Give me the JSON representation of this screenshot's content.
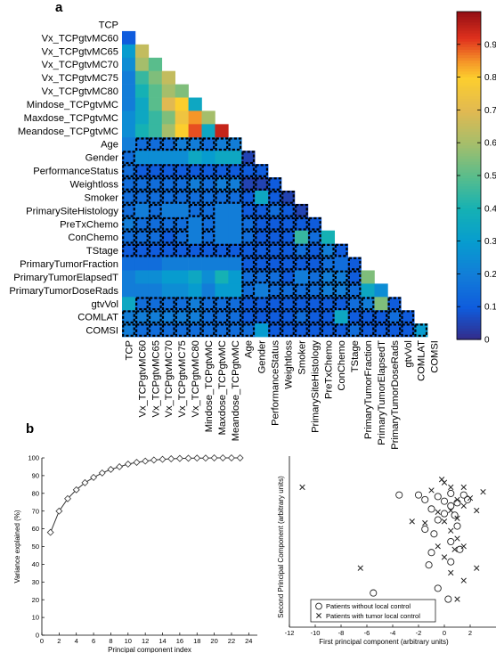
{
  "panel_a": {
    "letter": "a",
    "chart_data": {
      "type": "heatmap",
      "title": "",
      "labels": [
        "TCP",
        "Vx_TCPgtvMC60",
        "Vx_TCPgtvMC65",
        "Vx_TCPgtvMC70",
        "Vx_TCPgtvMC75",
        "Vx_TCPgtvMC80",
        "Mindose_TCPgtvMC",
        "Maxdose_TCPgtvMC",
        "Meandose_TCPgtvMC",
        "Age",
        "Gender",
        "PerformanceStatus",
        "Weightloss",
        "Smoker",
        "PrimarySiteHistology",
        "PreTxChemo",
        "ConChemo",
        "TStage",
        "PrimaryTumorFraction",
        "PrimaryTumorElapsedT",
        "PrimaryTumorDoseRads",
        "gtvVol",
        "COMLAT",
        "COMSI"
      ],
      "lower_triangle_values": [
        [],
        [
          0.1
        ],
        [
          0.3,
          0.65
        ],
        [
          0.25,
          0.6,
          0.5
        ],
        [
          0.2,
          0.45,
          0.55,
          0.65
        ],
        [
          0.2,
          0.4,
          0.5,
          0.6,
          0.55
        ],
        [
          0.2,
          0.35,
          0.5,
          0.7,
          0.8,
          0.35
        ],
        [
          0.25,
          0.35,
          0.45,
          0.55,
          0.75,
          0.85,
          0.6
        ],
        [
          0.25,
          0.4,
          0.45,
          0.6,
          0.8,
          0.9,
          0.35,
          0.95
        ],
        [
          0.2,
          0.15,
          0.15,
          0.15,
          0.2,
          0.2,
          0.15,
          0.2,
          0.2
        ],
        [
          0.15,
          0.25,
          0.25,
          0.25,
          0.25,
          0.35,
          0.3,
          0.35,
          0.35,
          0.05
        ],
        [
          0.15,
          0.1,
          0.1,
          0.1,
          0.1,
          0.1,
          0.1,
          0.1,
          0.1,
          0.1,
          0.1
        ],
        [
          0.15,
          0.15,
          0.15,
          0.15,
          0.15,
          0.2,
          0.15,
          0.2,
          0.2,
          0.05,
          0.05,
          0.1
        ],
        [
          0.15,
          0.15,
          0.15,
          0.15,
          0.15,
          0.15,
          0.15,
          0.15,
          0.15,
          0.1,
          0.35,
          0.1,
          0.05
        ],
        [
          0.15,
          0.2,
          0.15,
          0.2,
          0.2,
          0.15,
          0.15,
          0.2,
          0.2,
          0.1,
          0.1,
          0.15,
          0.1,
          0.05
        ],
        [
          0.2,
          0.15,
          0.15,
          0.15,
          0.15,
          0.2,
          0.15,
          0.2,
          0.2,
          0.15,
          0.1,
          0.1,
          0.1,
          0.1,
          0.1
        ],
        [
          0.15,
          0.15,
          0.15,
          0.1,
          0.15,
          0.2,
          0.15,
          0.2,
          0.2,
          0.15,
          0.1,
          0.1,
          0.1,
          0.45,
          0.15,
          0.4
        ],
        [
          0.1,
          0.1,
          0.1,
          0.1,
          0.1,
          0.1,
          0.1,
          0.1,
          0.1,
          0.1,
          0.1,
          0.1,
          0.1,
          0.15,
          0.1,
          0.2,
          0.1
        ],
        [
          0.15,
          0.15,
          0.15,
          0.2,
          0.2,
          0.2,
          0.2,
          0.2,
          0.2,
          0.1,
          0.1,
          0.1,
          0.1,
          0.1,
          0.1,
          0.15,
          0.15,
          0.1
        ],
        [
          0.2,
          0.25,
          0.25,
          0.3,
          0.3,
          0.35,
          0.25,
          0.4,
          0.3,
          0.15,
          0.15,
          0.15,
          0.1,
          0.2,
          0.15,
          0.2,
          0.2,
          0.1,
          0.55
        ],
        [
          0.2,
          0.2,
          0.2,
          0.25,
          0.25,
          0.3,
          0.2,
          0.3,
          0.3,
          0.15,
          0.2,
          0.15,
          0.15,
          0.15,
          0.15,
          0.2,
          0.2,
          0.15,
          0.35,
          0.25
        ],
        [
          0.35,
          0.15,
          0.15,
          0.15,
          0.15,
          0.2,
          0.15,
          0.15,
          0.15,
          0.1,
          0.1,
          0.1,
          0.1,
          0.1,
          0.1,
          0.1,
          0.1,
          0.15,
          0.2,
          0.55,
          0.1
        ],
        [
          0.2,
          0.2,
          0.2,
          0.2,
          0.2,
          0.2,
          0.15,
          0.15,
          0.15,
          0.1,
          0.1,
          0.1,
          0.1,
          0.15,
          0.1,
          0.1,
          0.35,
          0.1,
          0.1,
          0.1,
          0.15,
          0.1
        ],
        [
          0.2,
          0.15,
          0.15,
          0.15,
          0.15,
          0.15,
          0.15,
          0.15,
          0.15,
          0.15,
          0.3,
          0.1,
          0.1,
          0.1,
          0.1,
          0.1,
          0.1,
          0.15,
          0.1,
          0.1,
          0.1,
          0.1,
          0.3
        ]
      ],
      "non_significant_cells": [
        [
          9,
          1
        ],
        [
          9,
          2
        ],
        [
          9,
          3
        ],
        [
          9,
          4
        ],
        [
          9,
          5
        ],
        [
          9,
          6
        ],
        [
          9,
          7
        ],
        [
          9,
          8
        ],
        [
          10,
          0
        ],
        [
          10,
          9
        ],
        [
          11,
          0
        ],
        [
          11,
          1
        ],
        [
          11,
          2
        ],
        [
          11,
          3
        ],
        [
          11,
          4
        ],
        [
          11,
          5
        ],
        [
          11,
          6
        ],
        [
          11,
          7
        ],
        [
          11,
          8
        ],
        [
          11,
          9
        ],
        [
          11,
          10
        ],
        [
          12,
          0
        ],
        [
          12,
          1
        ],
        [
          12,
          2
        ],
        [
          12,
          3
        ],
        [
          12,
          4
        ],
        [
          12,
          5
        ],
        [
          12,
          6
        ],
        [
          12,
          7
        ],
        [
          12,
          8
        ],
        [
          12,
          9
        ],
        [
          12,
          10
        ],
        [
          12,
          11
        ],
        [
          13,
          0
        ],
        [
          13,
          1
        ],
        [
          13,
          2
        ],
        [
          13,
          3
        ],
        [
          13,
          4
        ],
        [
          13,
          5
        ],
        [
          13,
          6
        ],
        [
          13,
          7
        ],
        [
          13,
          8
        ],
        [
          13,
          9
        ],
        [
          13,
          11
        ],
        [
          13,
          12
        ],
        [
          14,
          0
        ],
        [
          14,
          2
        ],
        [
          14,
          5
        ],
        [
          14,
          6
        ],
        [
          14,
          9
        ],
        [
          14,
          10
        ],
        [
          14,
          11
        ],
        [
          14,
          12
        ],
        [
          14,
          13
        ],
        [
          15,
          0
        ],
        [
          15,
          1
        ],
        [
          15,
          2
        ],
        [
          15,
          3
        ],
        [
          15,
          4
        ],
        [
          15,
          6
        ],
        [
          15,
          9
        ],
        [
          15,
          10
        ],
        [
          15,
          11
        ],
        [
          15,
          12
        ],
        [
          15,
          13
        ],
        [
          15,
          14
        ],
        [
          16,
          0
        ],
        [
          16,
          1
        ],
        [
          16,
          2
        ],
        [
          16,
          3
        ],
        [
          16,
          4
        ],
        [
          16,
          6
        ],
        [
          16,
          9
        ],
        [
          16,
          10
        ],
        [
          16,
          11
        ],
        [
          16,
          12
        ],
        [
          16,
          14
        ],
        [
          17,
          0
        ],
        [
          17,
          1
        ],
        [
          17,
          2
        ],
        [
          17,
          3
        ],
        [
          17,
          4
        ],
        [
          17,
          5
        ],
        [
          17,
          6
        ],
        [
          17,
          7
        ],
        [
          17,
          8
        ],
        [
          17,
          9
        ],
        [
          17,
          10
        ],
        [
          17,
          11
        ],
        [
          17,
          12
        ],
        [
          17,
          13
        ],
        [
          17,
          14
        ],
        [
          17,
          15
        ],
        [
          17,
          16
        ],
        [
          18,
          9
        ],
        [
          18,
          10
        ],
        [
          18,
          11
        ],
        [
          18,
          12
        ],
        [
          18,
          13
        ],
        [
          18,
          14
        ],
        [
          18,
          15
        ],
        [
          18,
          17
        ],
        [
          19,
          9
        ],
        [
          19,
          10
        ],
        [
          19,
          11
        ],
        [
          19,
          12
        ],
        [
          19,
          14
        ],
        [
          19,
          15
        ],
        [
          19,
          16
        ],
        [
          19,
          17
        ],
        [
          20,
          9
        ],
        [
          20,
          11
        ],
        [
          20,
          12
        ],
        [
          20,
          13
        ],
        [
          20,
          14
        ],
        [
          20,
          15
        ],
        [
          20,
          16
        ],
        [
          20,
          17
        ],
        [
          21,
          1
        ],
        [
          21,
          2
        ],
        [
          21,
          3
        ],
        [
          21,
          4
        ],
        [
          21,
          5
        ],
        [
          21,
          6
        ],
        [
          21,
          7
        ],
        [
          21,
          8
        ],
        [
          21,
          9
        ],
        [
          21,
          10
        ],
        [
          21,
          11
        ],
        [
          21,
          12
        ],
        [
          21,
          13
        ],
        [
          21,
          14
        ],
        [
          21,
          15
        ],
        [
          21,
          16
        ],
        [
          21,
          17
        ],
        [
          21,
          18
        ],
        [
          21,
          20
        ],
        [
          22,
          0
        ],
        [
          22,
          1
        ],
        [
          22,
          2
        ],
        [
          22,
          3
        ],
        [
          22,
          4
        ],
        [
          22,
          5
        ],
        [
          22,
          6
        ],
        [
          22,
          7
        ],
        [
          22,
          8
        ],
        [
          22,
          9
        ],
        [
          22,
          10
        ],
        [
          22,
          11
        ],
        [
          22,
          12
        ],
        [
          22,
          13
        ],
        [
          22,
          14
        ],
        [
          22,
          15
        ],
        [
          22,
          17
        ],
        [
          22,
          18
        ],
        [
          22,
          19
        ],
        [
          22,
          20
        ],
        [
          22,
          21
        ],
        [
          23,
          0
        ],
        [
          23,
          1
        ],
        [
          23,
          2
        ],
        [
          23,
          3
        ],
        [
          23,
          4
        ],
        [
          23,
          5
        ],
        [
          23,
          6
        ],
        [
          23,
          7
        ],
        [
          23,
          8
        ],
        [
          23,
          9
        ],
        [
          23,
          11
        ],
        [
          23,
          12
        ],
        [
          23,
          13
        ],
        [
          23,
          14
        ],
        [
          23,
          15
        ],
        [
          23,
          16
        ],
        [
          23,
          17
        ],
        [
          23,
          18
        ],
        [
          23,
          19
        ],
        [
          23,
          20
        ],
        [
          23,
          21
        ],
        [
          23,
          22
        ]
      ],
      "colorbar": {
        "min": 0,
        "max": 1,
        "ticks": [
          "0",
          "0.1",
          "0.2",
          "0.3",
          "0.4",
          "0.5",
          "0.6",
          "0.7",
          "0.8",
          "0.9"
        ],
        "colormap": "jet"
      }
    }
  },
  "panel_b": {
    "letter": "b",
    "line_chart": {
      "type": "line",
      "xlabel": "Principal component index",
      "ylabel": "Variance explained (%)",
      "xlim": [
        0,
        25
      ],
      "ylim": [
        0,
        100
      ],
      "xticks": [
        "0",
        "2",
        "4",
        "6",
        "8",
        "10",
        "12",
        "14",
        "16",
        "18",
        "20",
        "22",
        "24"
      ],
      "yticks": [
        "0",
        "10",
        "20",
        "30",
        "40",
        "50",
        "60",
        "70",
        "80",
        "90",
        "100"
      ],
      "x": [
        1,
        2,
        3,
        4,
        5,
        6,
        7,
        8,
        9,
        10,
        11,
        12,
        13,
        14,
        15,
        16,
        17,
        18,
        19,
        20,
        21,
        22,
        23
      ],
      "y": [
        58,
        70,
        77,
        82,
        86,
        89,
        91.5,
        93.5,
        95,
        96.5,
        97.5,
        98.2,
        98.8,
        99.2,
        99.5,
        99.7,
        99.8,
        99.9,
        99.9,
        100,
        100,
        100,
        100
      ],
      "marker": "diamond"
    },
    "scatter_chart": {
      "type": "scatter",
      "xlabel": "First principal component (arbitrary units)",
      "ylabel": "Second Principal Component (arbitrary units)",
      "xlim": [
        -12,
        4
      ],
      "xticks": [
        "-12",
        "-10",
        "-8",
        "-6",
        "-4",
        "-2",
        "0",
        "2"
      ],
      "series": [
        {
          "name": "Patients without local control",
          "marker": "circle",
          "points": [
            [
              -3.5,
              2.5
            ],
            [
              -2,
              2.5
            ],
            [
              -1.5,
              2.2
            ],
            [
              -0.5,
              2.4
            ],
            [
              0,
              2.1
            ],
            [
              0.5,
              2.6
            ],
            [
              1,
              2.0
            ],
            [
              1.5,
              2.5
            ],
            [
              -1,
              1.6
            ],
            [
              0,
              1.3
            ],
            [
              0.5,
              1.8
            ],
            [
              -0.5,
              0.9
            ],
            [
              1,
              0.5
            ],
            [
              -1.5,
              0.3
            ],
            [
              0.5,
              -0.5
            ],
            [
              -1,
              -1.2
            ],
            [
              -1.2,
              -2
            ],
            [
              0.5,
              -1.8
            ],
            [
              -0.5,
              -3.5
            ],
            [
              -5.5,
              -3.8
            ],
            [
              0.3,
              -4.2
            ],
            [
              1.2,
              -1.0
            ],
            [
              -0.8,
              0.0
            ],
            [
              0.8,
              1.2
            ],
            [
              1.8,
              2.2
            ]
          ]
        },
        {
          "name": "Patients with tumor local control",
          "marker": "x",
          "points": [
            [
              -11,
              3.0
            ],
            [
              -6.5,
              -2.2
            ],
            [
              -2.5,
              0.8
            ],
            [
              -1,
              2.8
            ],
            [
              0,
              3.3
            ],
            [
              0.5,
              3.0
            ],
            [
              1,
              2.2
            ],
            [
              1.5,
              3.0
            ],
            [
              2,
              2.3
            ],
            [
              2.5,
              1.5
            ],
            [
              3,
              2.7
            ],
            [
              1.5,
              1.8
            ],
            [
              0.5,
              1.5
            ],
            [
              -0.5,
              1.4
            ],
            [
              0,
              0.8
            ],
            [
              1,
              1.0
            ],
            [
              -1.5,
              0.7
            ],
            [
              0.5,
              0.2
            ],
            [
              1,
              -0.3
            ],
            [
              1.5,
              -0.8
            ],
            [
              -0.5,
              -0.8
            ],
            [
              0,
              -1.5
            ],
            [
              0.5,
              -2.5
            ],
            [
              1.5,
              -3.0
            ],
            [
              2.5,
              -2.2
            ],
            [
              1.0,
              -4.2
            ],
            [
              -0.2,
              3.5
            ],
            [
              0.8,
              -1.0
            ]
          ]
        }
      ]
    }
  }
}
